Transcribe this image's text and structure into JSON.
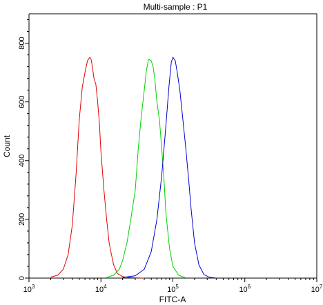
{
  "chart_data": {
    "type": "line",
    "title": "Multi-sample : P1",
    "xlabel": "FITC-A",
    "ylabel": "Count",
    "xscale": "log",
    "xlim": [
      1000,
      10000000
    ],
    "ylim": [
      0,
      900
    ],
    "x_ticks": [
      {
        "base": "10",
        "exp": "3"
      },
      {
        "base": "10",
        "exp": "4"
      },
      {
        "base": "10",
        "exp": "5"
      },
      {
        "base": "10",
        "exp": "6"
      },
      {
        "base": "10",
        "exp": "7"
      }
    ],
    "y_ticks": [
      "0",
      "200",
      "400",
      "600",
      "800"
    ],
    "grid": false,
    "legend": "none",
    "series": [
      {
        "color": "#e00000",
        "x": [
          2000,
          2500,
          3000,
          3500,
          4000,
          4500,
          5000,
          5500,
          6000,
          6500,
          7000,
          7300,
          7600,
          8000,
          8500,
          9000,
          9500,
          10000,
          11000,
          12000,
          13000,
          14000,
          15000,
          17000,
          20000,
          25000,
          30000,
          40000
        ],
        "y": [
          3,
          10,
          30,
          80,
          180,
          350,
          540,
          650,
          700,
          740,
          752,
          745,
          720,
          680,
          660,
          600,
          530,
          430,
          300,
          200,
          120,
          80,
          45,
          15,
          5,
          2,
          1,
          0
        ]
      },
      {
        "color": "#00d000",
        "x": [
          12000,
          15000,
          18000,
          20000,
          23000,
          26000,
          30000,
          33000,
          36000,
          40000,
          43000,
          46000,
          50000,
          53000,
          56000,
          60000,
          65000,
          70000,
          75000,
          80000,
          90000,
          100000,
          120000,
          150000
        ],
        "y": [
          2,
          10,
          30,
          60,
          120,
          200,
          300,
          440,
          540,
          640,
          710,
          745,
          740,
          720,
          680,
          600,
          540,
          440,
          340,
          220,
          100,
          40,
          10,
          1
        ]
      },
      {
        "color": "#0000d0",
        "x": [
          20000,
          30000,
          40000,
          50000,
          60000,
          70000,
          80000,
          88000,
          95000,
          100000,
          108000,
          115000,
          125000,
          135000,
          150000,
          165000,
          180000,
          200000,
          230000,
          270000,
          320000,
          400000
        ],
        "y": [
          2,
          8,
          30,
          90,
          200,
          350,
          520,
          650,
          735,
          752,
          740,
          700,
          640,
          560,
          450,
          340,
          230,
          120,
          45,
          12,
          3,
          0
        ]
      }
    ]
  }
}
